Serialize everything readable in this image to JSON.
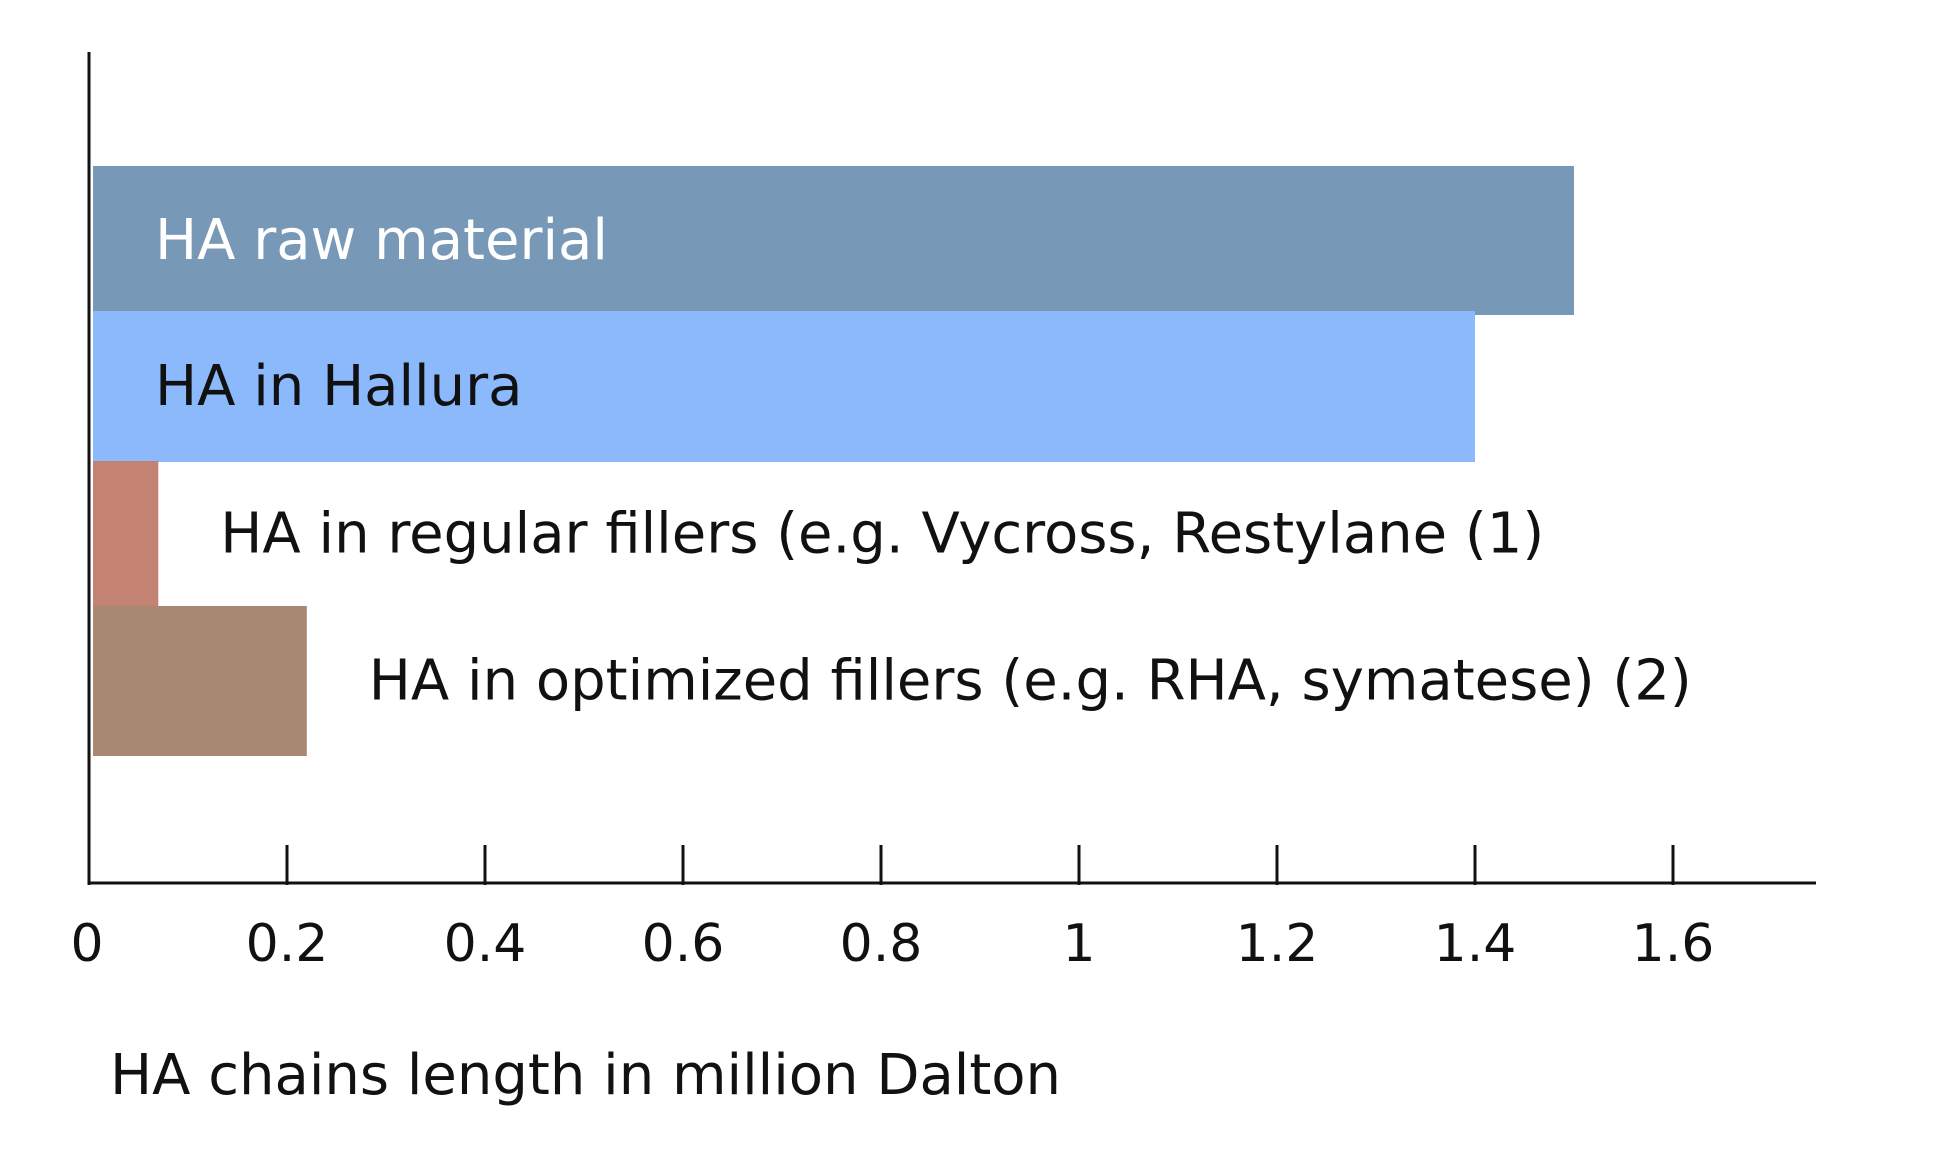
{
  "chart_data": {
    "type": "bar",
    "orientation": "horizontal",
    "title": "",
    "xlabel": "HA chains length in million Dalton",
    "ylabel": "",
    "xlim": [
      0,
      1.7
    ],
    "xticks": [
      0,
      0.2,
      0.4,
      0.6,
      0.8,
      1,
      1.2,
      1.4,
      1.6
    ],
    "xtick_labels": [
      "0",
      "0.2",
      "0.4",
      "0.6",
      "0.8",
      "1",
      "1.2",
      "1.4",
      "1.6"
    ],
    "grid": false,
    "legend": "none",
    "bars": [
      {
        "label": "HA raw material",
        "value": 1.5,
        "color": "#7898b8",
        "label_color": "#ffffff",
        "label_position": "inside"
      },
      {
        "label": "HA in Hallura",
        "value": 1.4,
        "color": "#8cb8fc",
        "label_color": "#111111",
        "label_position": "inside"
      },
      {
        "label": "HA in regular fillers (e.g. Vycross, Restylane (1)",
        "value": 0.07,
        "color": "#c48272",
        "label_color": "#111111",
        "label_position": "outside"
      },
      {
        "label": "HA in optimized fillers (e.g. RHA, symatese) (2)",
        "value": 0.22,
        "color": "#a88872",
        "label_color": "#111111",
        "label_position": "outside"
      }
    ]
  }
}
